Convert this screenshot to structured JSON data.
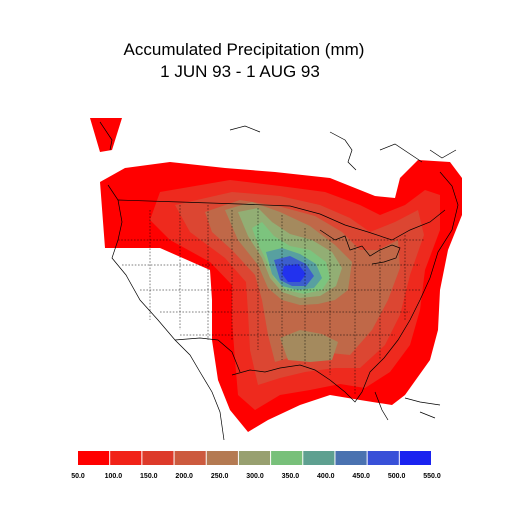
{
  "title": {
    "line1": "Accumulated Precipitation (mm)",
    "line2": "1 JUN 93 - 1 AUG 93"
  },
  "legend": {
    "labels": [
      "50.0",
      "100.0",
      "150.0",
      "200.0",
      "250.0",
      "300.0",
      "350.0",
      "400.0",
      "450.0",
      "500.0",
      "550.0"
    ],
    "colors": [
      "#ff0000",
      "#f12218",
      "#dd3a2a",
      "#cc5a3e",
      "#b47a52",
      "#98a070",
      "#78c07a",
      "#5ea090",
      "#4a72b0",
      "#3850d8",
      "#1a22f0"
    ]
  },
  "palette": {
    "red": "#ff0000",
    "red2": "#ee2a1e",
    "red3": "#dc4632",
    "brown": "#c06848",
    "tan": "#a48a5e",
    "olive": "#92ae74",
    "green": "#7cc47e",
    "teal": "#58a0a0",
    "blue": "#3c5ecc",
    "deepblue": "#2232ee",
    "boundary": "#000000"
  }
}
